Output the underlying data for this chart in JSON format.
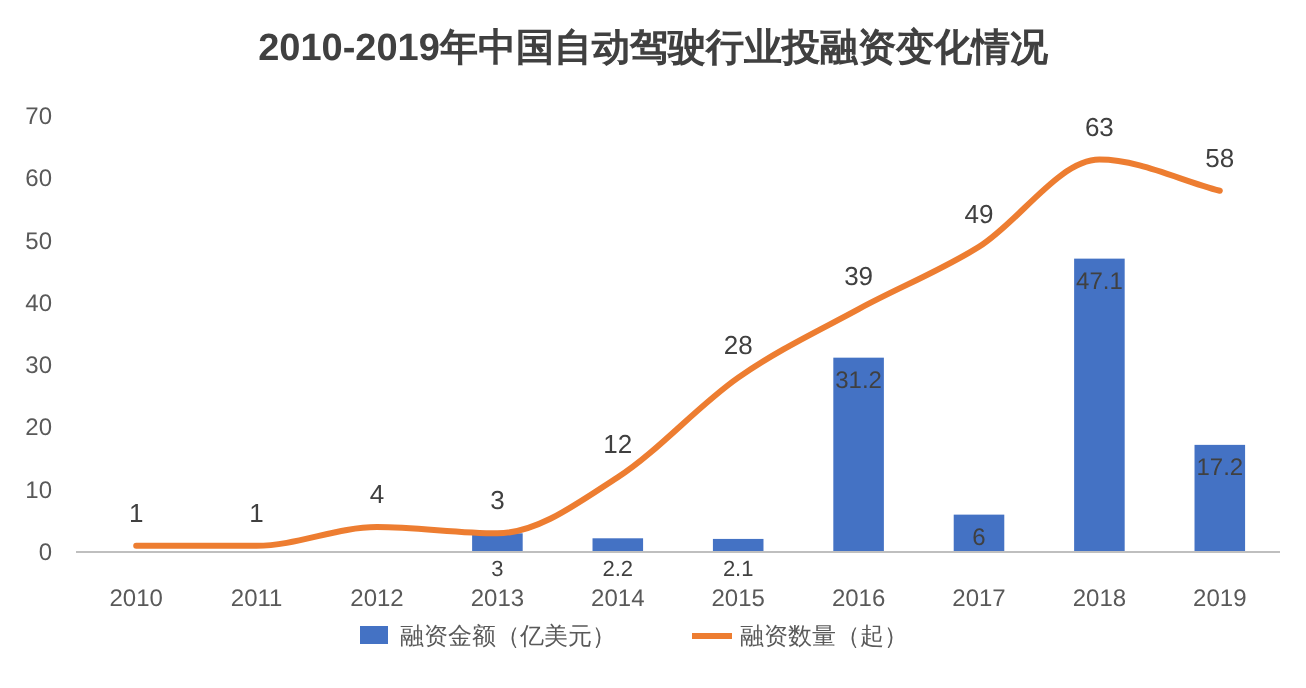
{
  "chart_data": {
    "type": "bar",
    "title": "2010-2019年中国自动驾驶行业投融资变化情况",
    "categories": [
      "2010",
      "2011",
      "2012",
      "2013",
      "2014",
      "2015",
      "2016",
      "2017",
      "2018",
      "2019"
    ],
    "series": [
      {
        "name": "融资金额（亿美元）",
        "color": "#4472c4",
        "values": [
          null,
          null,
          null,
          3,
          2.2,
          2.1,
          31.2,
          6,
          47.1,
          17.2
        ]
      },
      {
        "name": "融资数量（起）",
        "type": "line",
        "color": "#ed7d31",
        "values": [
          1,
          1,
          4,
          3,
          12,
          28,
          39,
          49,
          63,
          58
        ]
      }
    ],
    "ylim": [
      0,
      70
    ],
    "yticks": [
      0,
      10,
      20,
      30,
      40,
      50,
      60,
      70
    ],
    "data_labels": true,
    "legend": "bottom",
    "marker": "none",
    "line_style": "solid"
  }
}
